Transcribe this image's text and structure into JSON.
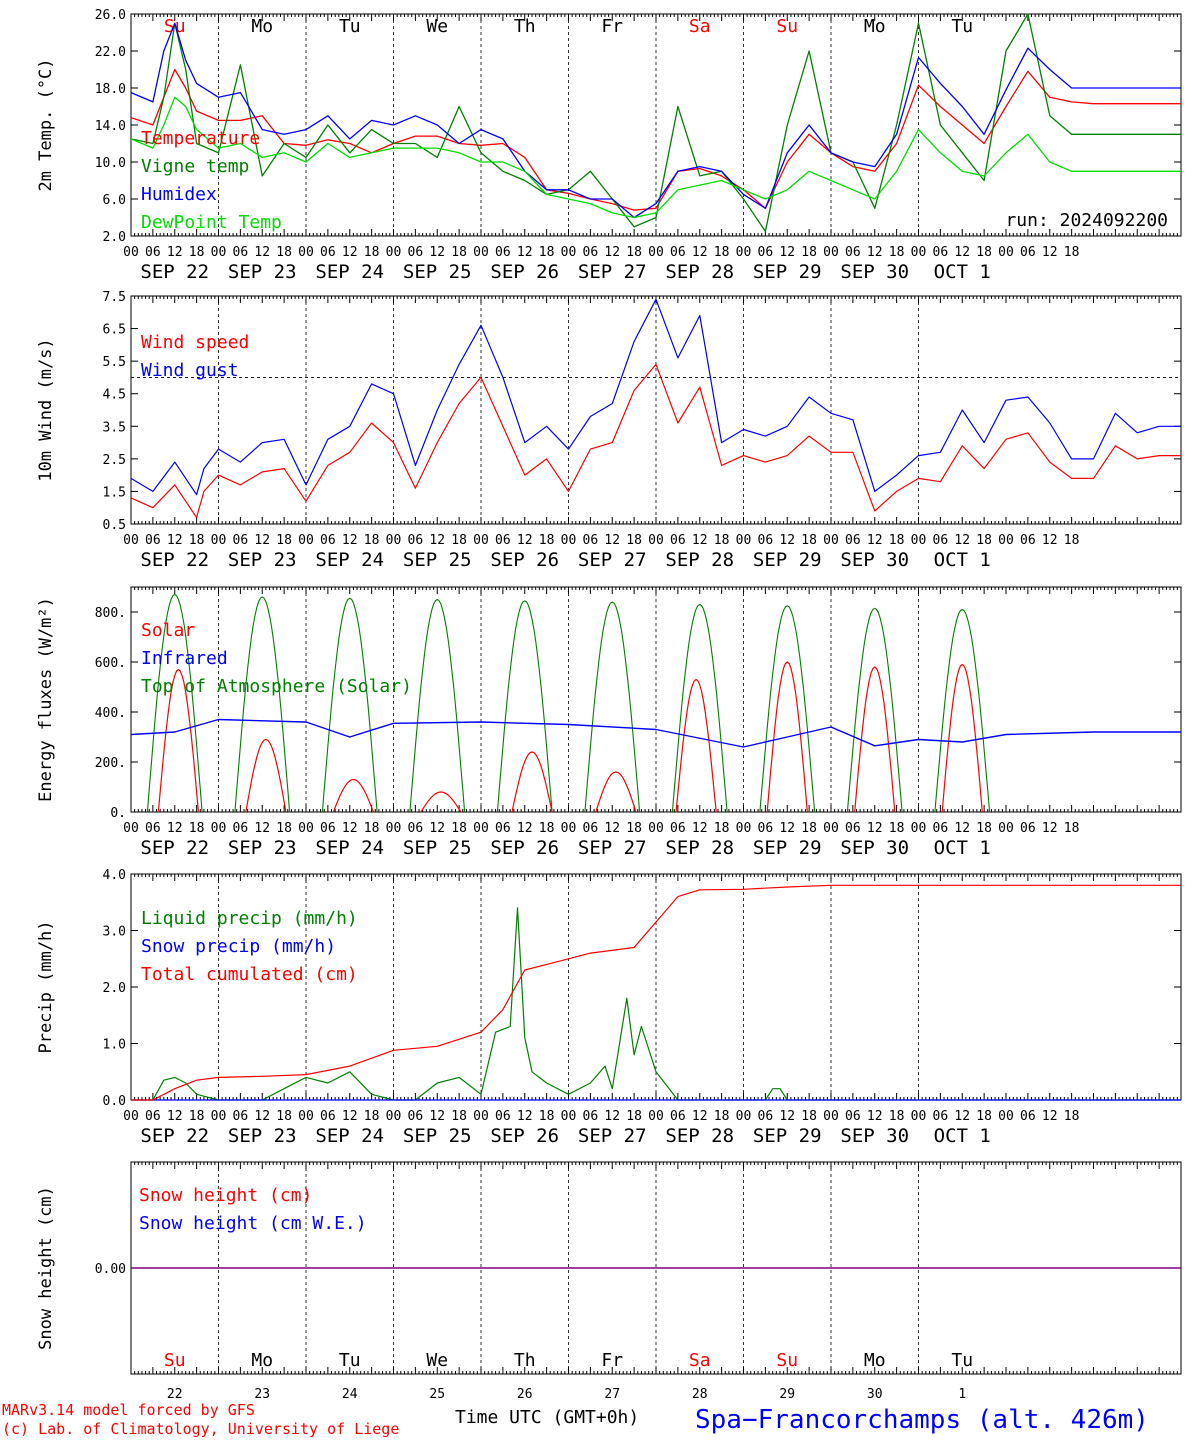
{
  "footer": {
    "model": "MARv3.14 model forced by GFS",
    "credit": "(c) Lab. of Climatology, University of Liege",
    "xtitle": "Time UTC (GMT+0h)",
    "station": "Spa−Francorchamps (alt. 426m)"
  },
  "hours": [
    "00",
    "06",
    "12",
    "18"
  ],
  "dates": [
    "SEP 22",
    "SEP 23",
    "SEP 24",
    "SEP 25",
    "SEP 26",
    "SEP 27",
    "SEP 28",
    "SEP 29",
    "SEP 30",
    "OCT  1"
  ],
  "weekdays": [
    "Su",
    "Mo",
    "Tu",
    "We",
    "Th",
    "Fr",
    "Sa",
    "Su",
    "Mo",
    "Tu"
  ],
  "weekday_colors": [
    "#ff0000",
    "#000000",
    "#000000",
    "#000000",
    "#000000",
    "#000000",
    "#ff0000",
    "#ff0000",
    "#000000",
    "#000000"
  ],
  "day_numbers": [
    "22",
    "23",
    "24",
    "25",
    "26",
    "27",
    "28",
    "29",
    "30",
    "1"
  ],
  "colors": {
    "red": "#ff0000",
    "green": "#008000",
    "blue": "#0000ff",
    "lime": "#00dd00",
    "purple": "#800080"
  },
  "chart_data": [
    {
      "type": "line",
      "ylabel": "2m Temp. (°C)",
      "ylim": [
        2,
        26
      ],
      "yticks": [
        "2.0",
        "6.0",
        "10.0",
        "14.0",
        "18.0",
        "22.0",
        "26.0"
      ],
      "ytick_values": [
        2,
        6,
        10,
        14,
        18,
        22,
        26
      ],
      "annotation": "run: 2024092200",
      "x_unit": "hours since SEP 22 00 UTC",
      "series": [
        {
          "name": "Temperature",
          "color": "#ff0000",
          "x": [
            0,
            6,
            9,
            12,
            15,
            18,
            24,
            30,
            36,
            42,
            48,
            54,
            60,
            66,
            72,
            78,
            84,
            90,
            96,
            102,
            108,
            114,
            120,
            126,
            132,
            138,
            144,
            150,
            156,
            162,
            168,
            174,
            180,
            186,
            192,
            198,
            204,
            210,
            216,
            222,
            228,
            234,
            240,
            246,
            252,
            258,
            264,
            270,
            276,
            282,
            288
          ],
          "y": [
            14.8,
            14,
            17,
            20,
            18,
            15.5,
            14.5,
            14.5,
            15,
            12,
            11.8,
            12.4,
            12,
            11,
            12,
            12.8,
            12.8,
            12,
            11.8,
            12,
            10.5,
            7,
            6.6,
            6,
            5.5,
            4.8,
            5,
            9,
            9.3,
            8.5,
            7,
            5,
            10,
            13,
            11,
            9.5,
            9,
            12,
            18.3,
            16,
            14,
            12,
            16,
            19.8,
            17,
            16.5,
            16.3,
            16.3,
            16.3,
            16.3,
            16.3
          ]
        },
        {
          "name": "Vigne temp",
          "color": "#008000",
          "x": [
            0,
            6,
            9,
            12,
            15,
            18,
            24,
            30,
            36,
            42,
            48,
            54,
            60,
            66,
            72,
            78,
            84,
            90,
            96,
            102,
            108,
            114,
            120,
            126,
            132,
            138,
            144,
            150,
            156,
            162,
            168,
            174,
            180,
            186,
            192,
            198,
            204,
            210,
            216,
            222,
            228,
            234,
            240,
            246,
            252,
            258,
            264,
            270,
            276,
            282,
            288
          ],
          "y": [
            12.5,
            12,
            17,
            25,
            20,
            12,
            11,
            20.5,
            8.5,
            12,
            10.5,
            14,
            11,
            13.5,
            12,
            12,
            10.5,
            16,
            11,
            9,
            8,
            6.5,
            7,
            9,
            6,
            3,
            4,
            16,
            8.5,
            9,
            6,
            2.5,
            14,
            22,
            11,
            10,
            5,
            14,
            25,
            14,
            11,
            8,
            22,
            26,
            15,
            13,
            13,
            13,
            13,
            13,
            13
          ]
        },
        {
          "name": "Humidex",
          "color": "#0000ff",
          "x": [
            0,
            6,
            9,
            12,
            15,
            18,
            24,
            30,
            36,
            42,
            48,
            54,
            60,
            66,
            72,
            78,
            84,
            90,
            96,
            102,
            108,
            114,
            120,
            126,
            132,
            138,
            144,
            150,
            156,
            162,
            168,
            174,
            180,
            186,
            192,
            198,
            204,
            210,
            216,
            222,
            228,
            234,
            240,
            246,
            252,
            258,
            264,
            270,
            276,
            282,
            288
          ],
          "y": [
            17.5,
            16.5,
            22,
            25,
            21,
            18.5,
            17,
            17.5,
            13.5,
            13,
            13.5,
            15,
            12.5,
            14.5,
            14,
            15,
            14,
            12,
            13.5,
            12.5,
            9,
            7,
            7,
            6,
            6,
            4,
            5.5,
            9,
            9.5,
            9,
            6.5,
            5,
            11,
            14,
            11,
            10,
            9.5,
            13,
            21.3,
            18.5,
            16,
            13,
            17.8,
            22.3,
            20,
            18,
            18,
            18,
            18,
            18,
            18
          ]
        },
        {
          "name": "DewPoint Temp",
          "color": "#00dd00",
          "x": [
            0,
            6,
            9,
            12,
            15,
            18,
            24,
            30,
            36,
            42,
            48,
            54,
            60,
            66,
            72,
            78,
            84,
            90,
            96,
            102,
            108,
            114,
            120,
            126,
            132,
            138,
            144,
            150,
            156,
            162,
            168,
            174,
            180,
            186,
            192,
            198,
            204,
            210,
            216,
            222,
            228,
            234,
            240,
            246,
            252,
            258,
            264,
            270,
            276,
            282,
            288
          ],
          "y": [
            12.5,
            11.5,
            14,
            17,
            16,
            13.5,
            11.5,
            12,
            10.5,
            11,
            10,
            12,
            10.5,
            11,
            11.5,
            11.5,
            11.5,
            11,
            10,
            10,
            9,
            6.5,
            6,
            5.5,
            4.5,
            4,
            4.5,
            7,
            7.5,
            8,
            7,
            6,
            7,
            9,
            8,
            7,
            6,
            9,
            13.5,
            11,
            9,
            8.5,
            11,
            13,
            10,
            9,
            9,
            9,
            9,
            9,
            9
          ]
        }
      ]
    },
    {
      "type": "line",
      "ylabel": "10m Wind (m/s)",
      "ylim": [
        0.5,
        7.5
      ],
      "yticks": [
        "0.5",
        "1.5",
        "2.5",
        "3.5",
        "4.5",
        "5.5",
        "6.5",
        "7.5"
      ],
      "ytick_values": [
        0.5,
        1.5,
        2.5,
        3.5,
        4.5,
        5.5,
        6.5,
        7.5
      ],
      "reference_line": 5.0,
      "series": [
        {
          "name": "Wind speed",
          "color": "#ff0000",
          "x": [
            0,
            6,
            12,
            18,
            20,
            24,
            30,
            36,
            42,
            48,
            54,
            60,
            66,
            72,
            78,
            84,
            90,
            96,
            102,
            108,
            114,
            120,
            126,
            132,
            138,
            144,
            150,
            156,
            162,
            168,
            174,
            180,
            186,
            192,
            198,
            204,
            210,
            216,
            222,
            228,
            234,
            240,
            246,
            252,
            258,
            264,
            270,
            276,
            282,
            288
          ],
          "y": [
            1.3,
            1,
            1.7,
            0.7,
            1.5,
            2,
            1.7,
            2.1,
            2.2,
            1.2,
            2.3,
            2.7,
            3.6,
            3,
            1.6,
            3,
            4.2,
            5,
            3.5,
            2,
            2.5,
            1.5,
            2.8,
            3,
            4.6,
            5.4,
            3.6,
            4.7,
            2.3,
            2.6,
            2.4,
            2.6,
            3.2,
            2.7,
            2.7,
            0.9,
            1.5,
            1.9,
            1.8,
            2.9,
            2.2,
            3.1,
            3.3,
            2.4,
            1.9,
            1.9,
            2.9,
            2.5,
            2.6,
            2.6
          ]
        },
        {
          "name": "Wind gust",
          "color": "#0000ff",
          "x": [
            0,
            6,
            12,
            18,
            20,
            24,
            30,
            36,
            42,
            48,
            54,
            60,
            66,
            72,
            78,
            84,
            90,
            96,
            102,
            108,
            114,
            120,
            126,
            132,
            138,
            144,
            150,
            156,
            162,
            168,
            174,
            180,
            186,
            192,
            198,
            204,
            210,
            216,
            222,
            228,
            234,
            240,
            246,
            252,
            258,
            264,
            270,
            276,
            282,
            288
          ],
          "y": [
            1.9,
            1.5,
            2.4,
            1.4,
            2.2,
            2.8,
            2.4,
            3,
            3.1,
            1.7,
            3.1,
            3.5,
            4.8,
            4.5,
            2.3,
            4,
            5.4,
            6.6,
            5,
            3,
            3.5,
            2.8,
            3.8,
            4.2,
            6.1,
            7.4,
            5.6,
            6.9,
            3,
            3.4,
            3.2,
            3.5,
            4.4,
            3.9,
            3.7,
            1.5,
            2,
            2.6,
            2.7,
            4,
            3,
            4.3,
            4.4,
            3.6,
            2.5,
            2.5,
            3.9,
            3.3,
            3.5,
            3.5
          ]
        }
      ]
    },
    {
      "type": "line",
      "ylabel": "Energy fluxes (W/m²)",
      "ylim": [
        0,
        900
      ],
      "yticks": [
        "0.",
        "200.",
        "400.",
        "600.",
        "800."
      ],
      "ytick_values": [
        0,
        200,
        400,
        600,
        800
      ],
      "series": [
        {
          "name": "Solar",
          "color": "#ff0000",
          "daily_peak": [
            570,
            290,
            130,
            80,
            240,
            160,
            530,
            600,
            580,
            590
          ],
          "peak_offset_h": [
            14,
            14,
            14,
            14,
            15,
            14,
            12,
            13,
            13,
            13
          ]
        },
        {
          "name": "Infrared",
          "color": "#0000ff",
          "x": [
            0,
            12,
            24,
            48,
            60,
            72,
            96,
            120,
            144,
            168,
            180,
            192,
            204,
            216,
            228,
            240,
            264,
            288
          ],
          "y": [
            310,
            320,
            370,
            360,
            300,
            355,
            360,
            350,
            330,
            260,
            300,
            340,
            265,
            290,
            280,
            310,
            320,
            320
          ]
        },
        {
          "name": "Top of Atmosphere (Solar)",
          "color": "#008000",
          "daily_peak": [
            870,
            860,
            855,
            850,
            845,
            840,
            830,
            825,
            815,
            810
          ]
        }
      ]
    },
    {
      "type": "line",
      "ylabel": "Precip (mm/h)",
      "ylim": [
        0,
        4
      ],
      "yticks": [
        "0.0",
        "1.0",
        "2.0",
        "3.0",
        "4.0"
      ],
      "ytick_values": [
        0,
        1,
        2,
        3,
        4
      ],
      "series": [
        {
          "name": "Liquid precip (mm/h)",
          "color": "#008000",
          "x": [
            0,
            6,
            9,
            12,
            15,
            18,
            24,
            36,
            42,
            48,
            54,
            60,
            66,
            72,
            78,
            84,
            90,
            96,
            100,
            104,
            106,
            108,
            110,
            114,
            120,
            126,
            130,
            132,
            136,
            138,
            140,
            144,
            150,
            156,
            162,
            174,
            176,
            178,
            180,
            288
          ],
          "y": [
            0,
            0,
            0.35,
            0.4,
            0.3,
            0.1,
            0,
            0,
            0.2,
            0.4,
            0.3,
            0.5,
            0.1,
            0,
            0,
            0.3,
            0.4,
            0.1,
            1.2,
            1.3,
            3.4,
            1.1,
            0.5,
            0.3,
            0.1,
            0.3,
            0.6,
            0.2,
            1.8,
            0.8,
            1.3,
            0.5,
            0,
            0,
            0,
            0,
            0.2,
            0.2,
            0,
            0
          ]
        },
        {
          "name": "Snow precip (mm/h)",
          "color": "#0000ff",
          "x": [
            0,
            288
          ],
          "y": [
            0,
            0
          ]
        },
        {
          "name": "Total cumulated (cm)",
          "color": "#ff0000",
          "x": [
            0,
            6,
            12,
            18,
            24,
            36,
            48,
            60,
            72,
            84,
            96,
            102,
            108,
            114,
            120,
            126,
            138,
            150,
            156,
            168,
            180,
            192,
            288
          ],
          "y": [
            0,
            0,
            0.2,
            0.35,
            0.4,
            0.42,
            0.45,
            0.6,
            0.88,
            0.95,
            1.2,
            1.6,
            2.3,
            2.4,
            2.5,
            2.6,
            2.7,
            3.6,
            3.72,
            3.73,
            3.77,
            3.8,
            3.8
          ]
        }
      ]
    },
    {
      "type": "line",
      "ylabel": "Snow height (cm)",
      "ylim": [
        -1,
        1
      ],
      "yticks": [
        "0.00"
      ],
      "ytick_values": [
        0
      ],
      "series": [
        {
          "name": "Snow height (cm)",
          "color": "#ff0000",
          "x": [
            0,
            288
          ],
          "y": [
            0,
            0
          ]
        },
        {
          "name": "Snow height (cm W.E.)",
          "color": "#0000ff",
          "x": [
            0,
            288
          ],
          "y": [
            0,
            0
          ]
        }
      ]
    }
  ]
}
